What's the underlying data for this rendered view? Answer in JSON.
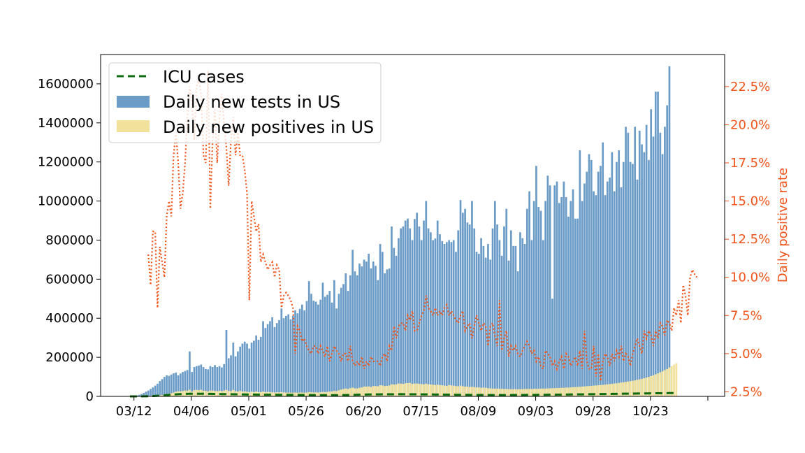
{
  "chart_data": {
    "type": "bar",
    "start_date": "2020-03-06",
    "x_tick_labels": [
      "03/12",
      "04/06",
      "05/01",
      "05/26",
      "06/20",
      "07/15",
      "08/09",
      "09/03",
      "09/28",
      "10/23"
    ],
    "legend": {
      "placement": "top-left",
      "entries": [
        "ICU cases",
        "Daily new tests in US",
        "Daily new positives in US"
      ]
    },
    "left_axis": {
      "ylim": [
        0,
        1750000
      ],
      "ticks": [
        "0",
        "200000",
        "400000",
        "600000",
        "800000",
        "1000000",
        "1200000",
        "1400000",
        "1600000"
      ]
    },
    "right_axis": {
      "label": "Daily positive rate",
      "ylim": [
        2.2,
        24.6
      ],
      "ticks": [
        "2.5%",
        "5.0%",
        "7.5%",
        "10.0%",
        "12.5%",
        "15.0%",
        "17.5%",
        "20.0%",
        "22.5%"
      ]
    },
    "series": [
      {
        "name": "Daily new tests in US",
        "type": "bar",
        "values": [
          1000,
          2000,
          3000,
          5000,
          8000,
          12000,
          18000,
          24000,
          30000,
          38000,
          46000,
          55000,
          65000,
          78000,
          88000,
          100000,
          108000,
          105000,
          112000,
          118000,
          122000,
          108000,
          117000,
          125000,
          130000,
          135000,
          230000,
          125000,
          150000,
          155000,
          158000,
          163000,
          150000,
          140000,
          138000,
          155000,
          150000,
          160000,
          150000,
          155000,
          148000,
          165000,
          340000,
          195000,
          210000,
          275000,
          205000,
          230000,
          255000,
          270000,
          280000,
          270000,
          245000,
          275000,
          285000,
          312000,
          290000,
          305000,
          385000,
          350000,
          370000,
          385000,
          405000,
          355000,
          375000,
          390000,
          450000,
          400000,
          412000,
          420000,
          395000,
          412000,
          440000,
          425000,
          448000,
          470000,
          440000,
          488000,
          590000,
          525000,
          490000,
          485000,
          470000,
          495000,
          582000,
          510000,
          520000,
          540000,
          480000,
          595000,
          450000,
          525000,
          556000,
          575000,
          630000,
          540000,
          620000,
          750000,
          640000,
          620000,
          680000,
          665000,
          700000,
          690000,
          730000,
          655000,
          690000,
          668000,
          595000,
          780000,
          740000,
          630000,
          650000,
          655000,
          870000,
          760000,
          720000,
          810000,
          860000,
          870000,
          900000,
          910000,
          860000,
          800000,
          908000,
          940000,
          870000,
          800000,
          900000,
          1000000,
          860000,
          840000,
          800000,
          808000,
          900000,
          830000,
          795000,
          780000,
          790000,
          800000,
          790000,
          800000,
          740000,
          850000,
          1005000,
          940000,
          960000,
          890000,
          880000,
          1000000,
          860000,
          740000,
          730000,
          810000,
          770000,
          710000,
          780000,
          700000,
          860000,
          1000000,
          880000,
          800000,
          720000,
          870000,
          960000,
          695000,
          850000,
          770000,
          770000,
          640000,
          840000,
          810000,
          780000,
          960000,
          1050000,
          800000,
          1000000,
          1180000,
          970000,
          950000,
          800000,
          1000000,
          1130000,
          1080000,
          500000,
          1080000,
          1100000,
          990000,
          1020000,
          1100000,
          1020000,
          920000,
          1000000,
          1060000,
          910000,
          910000,
          1260000,
          1000000,
          1090000,
          1150000,
          1240000,
          1210000,
          1050000,
          1030000,
          1150000,
          1180000,
          1300000,
          1030000,
          1100000,
          1120000,
          1250000,
          1050000,
          1200000,
          1260000,
          1070000,
          1200000,
          1380000,
          1350000,
          1200000,
          1190000,
          1380000,
          1110000,
          1360000,
          1290000,
          1250000,
          1390000,
          1210000,
          1470000,
          1330000,
          1560000,
          1560000,
          1350000,
          1240000,
          1380000,
          1490000,
          1690000
        ]
      },
      {
        "name": "Daily new positives in US",
        "type": "bar",
        "values": [
          100,
          200,
          300,
          400,
          600,
          900,
          1200,
          1600,
          2200,
          2800,
          3400,
          4000,
          4800,
          5600,
          7000,
          9000,
          11000,
          13000,
          16000,
          20000,
          24000,
          26000,
          26000,
          28000,
          30000,
          29000,
          34000,
          25000,
          32000,
          33000,
          32000,
          34000,
          29000,
          28000,
          26000,
          30000,
          30000,
          28000,
          27000,
          29000,
          27000,
          30000,
          33000,
          28000,
          27000,
          33000,
          26000,
          25000,
          29000,
          25000,
          25000,
          24000,
          22000,
          24000,
          22000,
          25000,
          22000,
          22000,
          25000,
          22000,
          23000,
          22000,
          21000,
          20000,
          21000,
          21000,
          22000,
          20000,
          20000,
          19000,
          19000,
          19000,
          20000,
          19000,
          20000,
          20000,
          19000,
          20000,
          22000,
          21000,
          20000,
          21000,
          20000,
          21000,
          23000,
          22000,
          23000,
          25000,
          25000,
          28000,
          27000,
          31000,
          35000,
          38000,
          40000,
          38000,
          42000,
          45000,
          41000,
          41000,
          44000,
          46000,
          50000,
          50000,
          51000,
          48000,
          53000,
          53000,
          52000,
          57000,
          56000,
          53000,
          54000,
          56000,
          62000,
          61000,
          62000,
          66000,
          65000,
          64000,
          67000,
          68000,
          69000,
          64000,
          66000,
          66000,
          64000,
          63000,
          62000,
          65000,
          62000,
          61000,
          60000,
          58000,
          60000,
          58000,
          57000,
          55000,
          54000,
          58000,
          56000,
          55000,
          53000,
          52000,
          55000,
          52000,
          50000,
          50000,
          48000,
          49000,
          48000,
          46000,
          46000,
          44000,
          45000,
          44000,
          42000,
          41000,
          40000,
          40000,
          40000,
          39000,
          39000,
          38000,
          38000,
          37000,
          37000,
          37000,
          37000,
          36000,
          37000,
          37000,
          38000,
          38000,
          38000,
          38000,
          39000,
          39000,
          39000,
          40000,
          40000,
          40000,
          41000,
          41000,
          42000,
          42000,
          43000,
          43000,
          44000,
          44000,
          45000,
          45000,
          46000,
          47000,
          48000,
          48000,
          49000,
          50000,
          51000,
          52000,
          53000,
          54000,
          55000,
          56000,
          57000,
          58000,
          59000,
          60000,
          62000,
          63000,
          64000,
          66000,
          67000,
          69000,
          71000,
          72000,
          74000,
          76000,
          78000,
          80000,
          82000,
          85000,
          87000,
          90000,
          93000,
          96000,
          100000,
          104000,
          108000,
          113000,
          118000,
          123000,
          128000,
          135000,
          140000,
          148000,
          155000,
          163000,
          170000
        ]
      },
      {
        "name": "ICU cases",
        "type": "line",
        "axis": "left",
        "values": [
          0,
          0,
          0,
          0,
          0,
          200,
          400,
          600,
          900,
          1300,
          1800,
          2400,
          3100,
          3900,
          4800,
          5800,
          6800,
          7800,
          8800,
          9700,
          10500,
          11200,
          11800,
          12300,
          12700,
          13000,
          13200,
          13400,
          13500,
          13500,
          13500,
          13400,
          13300,
          13200,
          13000,
          12800,
          12600,
          12400,
          12200,
          12000,
          11800,
          11600,
          11400,
          11200,
          11000,
          10800,
          10600,
          10400,
          10200,
          10000,
          9800,
          9600,
          9500,
          9300,
          9200,
          9000,
          8900,
          8800,
          8700,
          8600,
          8500,
          8400,
          8300,
          8200,
          8100,
          8000,
          7900,
          7800,
          7700,
          7600,
          7500,
          7400,
          7300,
          7200,
          7100,
          7000,
          6900,
          6800,
          6700,
          6600,
          6500,
          6400,
          6400,
          6300,
          6300,
          6200,
          6200,
          6100,
          6100,
          6100,
          6100,
          6200,
          6300,
          6500,
          6700,
          7000,
          7300,
          7600,
          8000,
          8300,
          8600,
          8900,
          9200,
          9500,
          9700,
          9900,
          10100,
          10300,
          10400,
          10500,
          10600,
          10700,
          10800,
          10800,
          10900,
          10900,
          11000,
          11000,
          11000,
          11000,
          11000,
          10900,
          10900,
          10800,
          10700,
          10600,
          10500,
          10400,
          10300,
          10200,
          10100,
          9900,
          9800,
          9600,
          9500,
          9300,
          9100,
          9000,
          8800,
          8600,
          8500,
          8300,
          8200,
          8000,
          7900,
          7800,
          7700,
          7600,
          7500,
          7400,
          7300,
          7200,
          7100,
          7000,
          7000,
          6900,
          6900,
          6800,
          6800,
          6800,
          6800,
          6800,
          6800,
          6800,
          6800,
          6900,
          6900,
          7000,
          7000,
          7100,
          7100,
          7200,
          7300,
          7400,
          7500,
          7600,
          7700,
          7800,
          7900,
          8000,
          8100,
          8200,
          8300,
          8400,
          8500,
          8700,
          8800,
          8900,
          9100,
          9200,
          9400,
          9500,
          9700,
          9800,
          10000,
          10100,
          10300,
          10400,
          10600,
          10800,
          11000,
          11100,
          11300,
          11500,
          11700,
          11900,
          12000,
          12200,
          12400,
          12600,
          12800,
          13000,
          13100,
          13300,
          13500,
          13700,
          13800,
          14000,
          14200,
          14300,
          14500,
          14700,
          14800,
          15000,
          15100,
          15300,
          15400,
          15600,
          15700,
          15900,
          16000,
          16200,
          16300,
          16500,
          16600,
          16800,
          16900,
          17100,
          17200
        ]
      },
      {
        "name": "Daily positive rate",
        "type": "line",
        "axis": "right",
        "values": [
          null,
          null,
          null,
          null,
          null,
          null,
          null,
          null,
          11.5,
          9.5,
          13.0,
          13.0,
          8.0,
          12.0,
          11.0,
          10.0,
          14.0,
          15.0,
          14.0,
          18.0,
          19.5,
          17.5,
          14.5,
          15.5,
          17.5,
          20.5,
          22.5,
          21.5,
          19.0,
          22.5,
          23.0,
          22.0,
          18.0,
          17.5,
          23.5,
          14.5,
          19.0,
          21.0,
          17.5,
          20.5,
          22.0,
          20.0,
          18.5,
          16.0,
          19.0,
          20.5,
          18.0,
          19.5,
          18.0,
          18.0,
          17.0,
          15.5,
          8.5,
          15.0,
          14.0,
          13.0,
          13.5,
          11.0,
          11.5,
          11.0,
          10.5,
          10.8,
          11.0,
          10.0,
          10.8,
          10.5,
          8.0,
          8.8,
          9.0,
          8.8,
          8.5,
          8.0,
          5.0,
          6.8,
          6.5,
          5.8,
          6.0,
          5.5,
          5.2,
          5.0,
          5.5,
          5.5,
          5.0,
          5.5,
          5.2,
          4.8,
          5.5,
          4.5,
          5.0,
          5.5,
          5.2,
          5.0,
          4.5,
          5.0,
          5.0,
          4.5,
          5.5,
          4.5,
          4.2,
          4.5,
          4.2,
          4.8,
          4.0,
          4.5,
          4.2,
          4.8,
          4.5,
          4.5,
          4.5,
          4.2,
          4.8,
          5.0,
          4.5,
          5.5,
          5.2,
          6.8,
          6.0,
          6.8,
          7.0,
          7.0,
          6.5,
          7.5,
          7.2,
          7.8,
          6.5,
          6.5,
          7.0,
          7.5,
          7.8,
          8.8,
          8.0,
          7.8,
          7.5,
          8.0,
          7.5,
          7.8,
          7.5,
          8.0,
          8.2,
          7.5,
          7.8,
          7.5,
          7.2,
          7.0,
          7.5,
          7.8,
          6.5,
          6.8,
          7.0,
          6.0,
          6.8,
          7.5,
          7.0,
          6.5,
          7.0,
          6.8,
          5.5,
          6.8,
          7.0,
          6.2,
          5.5,
          8.5,
          5.2,
          6.0,
          6.5,
          4.8,
          5.5,
          5.2,
          5.5,
          5.0,
          4.8,
          5.2,
          5.5,
          5.8,
          5.5,
          5.0,
          5.2,
          4.5,
          4.8,
          4.2,
          4.0,
          5.2,
          5.0,
          4.8,
          4.2,
          4.5,
          4.0,
          4.5,
          4.8,
          4.0,
          5.0,
          4.8,
          4.2,
          4.5,
          4.8,
          4.2,
          5.2,
          4.0,
          6.5,
          4.5,
          4.0,
          4.0,
          5.5,
          3.5,
          5.0,
          3.2,
          4.5,
          5.0,
          4.8,
          4.2,
          5.0,
          4.5,
          5.2,
          4.8,
          5.5,
          4.5,
          5.0,
          4.8,
          4.2,
          5.0,
          5.5,
          6.0,
          5.5,
          5.0,
          6.5,
          6.0,
          6.5,
          6.2,
          5.5,
          6.5,
          6.0,
          7.0,
          6.8,
          6.2,
          7.2,
          7.0,
          6.5,
          8.0,
          7.5,
          8.5,
          7.0,
          9.5,
          8.8,
          7.5,
          10.0,
          10.5,
          10.2,
          10.0
        ]
      }
    ],
    "colors": {
      "tests": "#6a9cc7",
      "positives": "#f1e19b",
      "icu": "#0d6b0d",
      "rate": "#f0541a",
      "right_axis_text": "#f0541a"
    }
  }
}
